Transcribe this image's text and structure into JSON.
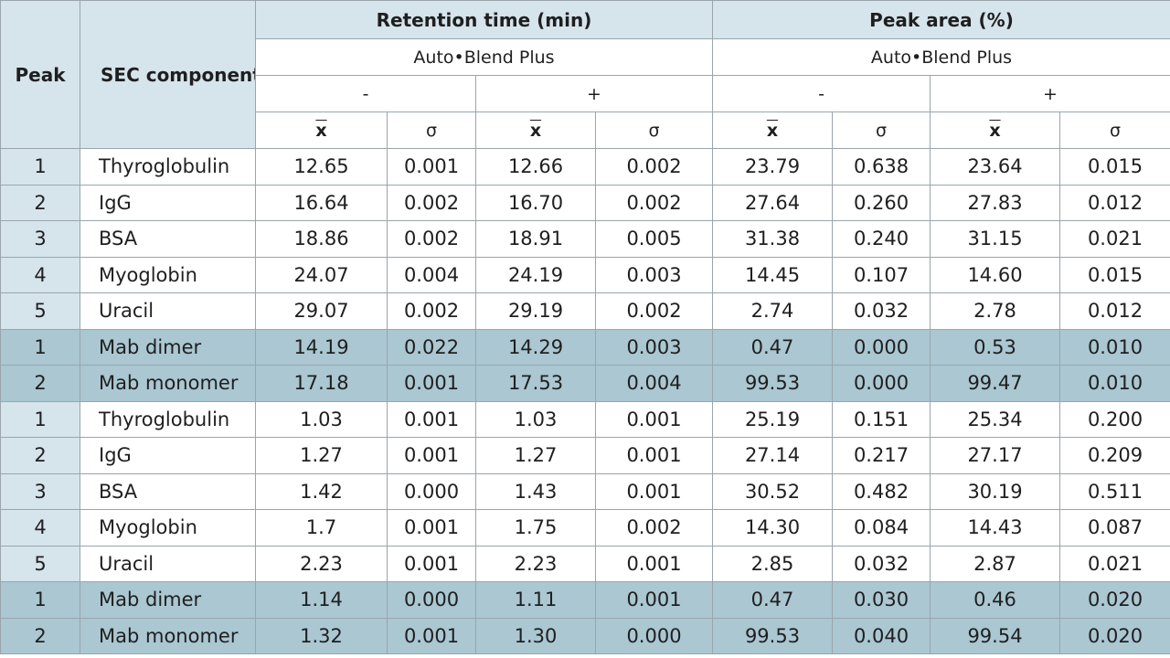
{
  "header": {
    "peak": "Peak",
    "component": "SEC component",
    "retention": "Retention time (min)",
    "area": "Peak area (%)",
    "mode": "Auto•Blend Plus",
    "minus": "-",
    "plus": "+",
    "mean": "x",
    "sigma": "σ"
  },
  "rows": [
    {
      "peak": "1",
      "component": "Thyroglobulin",
      "v": [
        "12.65",
        "0.001",
        "12.66",
        "0.002",
        "23.79",
        "0.638",
        "23.64",
        "0.015"
      ],
      "shaded": false
    },
    {
      "peak": "2",
      "component": "IgG",
      "v": [
        "16.64",
        "0.002",
        "16.70",
        "0.002",
        "27.64",
        "0.260",
        "27.83",
        "0.012"
      ],
      "shaded": false
    },
    {
      "peak": "3",
      "component": "BSA",
      "v": [
        "18.86",
        "0.002",
        "18.91",
        "0.005",
        "31.38",
        "0.240",
        "31.15",
        "0.021"
      ],
      "shaded": false
    },
    {
      "peak": "4",
      "component": "Myoglobin",
      "v": [
        "24.07",
        "0.004",
        "24.19",
        "0.003",
        "14.45",
        "0.107",
        "14.60",
        "0.015"
      ],
      "shaded": false
    },
    {
      "peak": "5",
      "component": "Uracil",
      "v": [
        "29.07",
        "0.002",
        "29.19",
        "0.002",
        "2.74",
        "0.032",
        "2.78",
        "0.012"
      ],
      "shaded": false
    },
    {
      "peak": "1",
      "component": "Mab dimer",
      "v": [
        "14.19",
        "0.022",
        "14.29",
        "0.003",
        "0.47",
        "0.000",
        "0.53",
        "0.010"
      ],
      "shaded": true
    },
    {
      "peak": "2",
      "component": "Mab monomer",
      "v": [
        "17.18",
        "0.001",
        "17.53",
        "0.004",
        "99.53",
        "0.000",
        "99.47",
        "0.010"
      ],
      "shaded": true
    },
    {
      "peak": "1",
      "component": "Thyroglobulin",
      "v": [
        "1.03",
        "0.001",
        "1.03",
        "0.001",
        "25.19",
        "0.151",
        "25.34",
        "0.200"
      ],
      "shaded": false
    },
    {
      "peak": "2",
      "component": "IgG",
      "v": [
        "1.27",
        "0.001",
        "1.27",
        "0.001",
        "27.14",
        "0.217",
        "27.17",
        "0.209"
      ],
      "shaded": false
    },
    {
      "peak": "3",
      "component": "BSA",
      "v": [
        "1.42",
        "0.000",
        "1.43",
        "0.001",
        "30.52",
        "0.482",
        "30.19",
        "0.511"
      ],
      "shaded": false
    },
    {
      "peak": "4",
      "component": "Myoglobin",
      "v": [
        "1.7",
        "0.001",
        "1.75",
        "0.002",
        "14.30",
        "0.084",
        "14.43",
        "0.087"
      ],
      "shaded": false
    },
    {
      "peak": "5",
      "component": "Uracil",
      "v": [
        "2.23",
        "0.001",
        "2.23",
        "0.001",
        "2.85",
        "0.032",
        "2.87",
        "0.021"
      ],
      "shaded": false
    },
    {
      "peak": "1",
      "component": "Mab dimer",
      "v": [
        "1.14",
        "0.000",
        "1.11",
        "0.001",
        "0.47",
        "0.030",
        "0.46",
        "0.020"
      ],
      "shaded": true
    },
    {
      "peak": "2",
      "component": "Mab monomer",
      "v": [
        "1.32",
        "0.001",
        "1.30",
        "0.000",
        "99.53",
        "0.040",
        "99.54",
        "0.020"
      ],
      "shaded": true
    }
  ]
}
